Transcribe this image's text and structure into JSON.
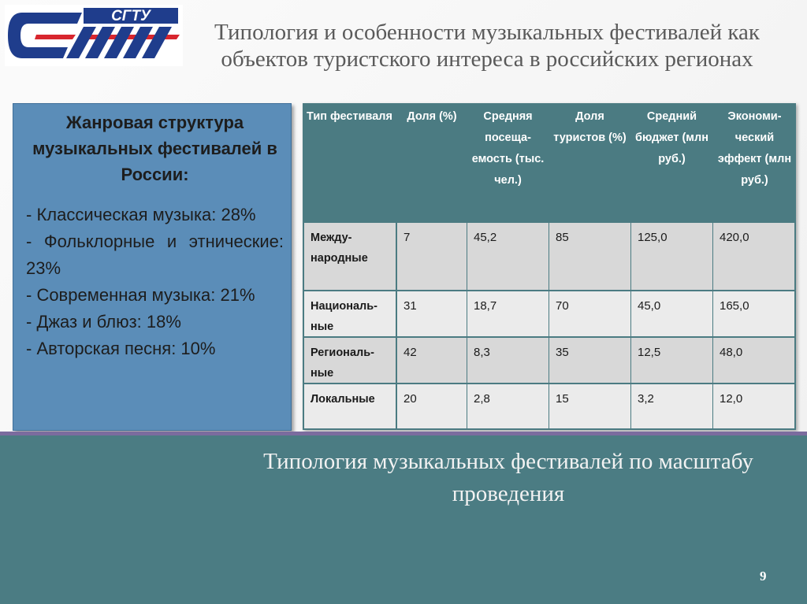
{
  "title": "Типология и особенности музыкальных фестивалей как объектов туристского интереса в российских регионах",
  "logo": {
    "text": "СГТУ",
    "colors": {
      "primary": "#1f3d8c",
      "accent": "#d8262e"
    }
  },
  "genre_box": {
    "heading": "Жанровая структура музыкальных фестивалей в России:",
    "items": [
      "- Классическая музыка: 28%",
      "- Фольклорные и этнические: 23%",
      "- Современная музыка: 21%",
      "- Джаз и блюз: 18%",
      "- Авторская песня: 10%"
    ]
  },
  "table": {
    "headers": [
      "Тип фестиваля",
      "Доля (%)",
      "Средняя посеща-емость (тыс. чел.)",
      "Доля туристов (%)",
      "Средний бюджет (млн руб.)",
      "Экономи-ческий эффект (млн руб.)"
    ],
    "rows": [
      [
        "Между-народные",
        "7",
        "45,2",
        "85",
        "125,0",
        "420,0"
      ],
      [
        "Националь-ные",
        "31",
        "18,7",
        "70",
        "45,0",
        "165,0"
      ],
      [
        "Региональ-ные",
        "42",
        "8,3",
        "35",
        "12,5",
        "48,0"
      ],
      [
        "Локальные",
        "20",
        "2,8",
        "15",
        "3,2",
        "12,0"
      ]
    ]
  },
  "subtitle": "Типология музыкальных фестивалей по масштабу проведения",
  "page_number": "9",
  "colors": {
    "teal": "#4b7c83",
    "blue_box": "#5b8db8",
    "divider": "#7b6c9e"
  }
}
